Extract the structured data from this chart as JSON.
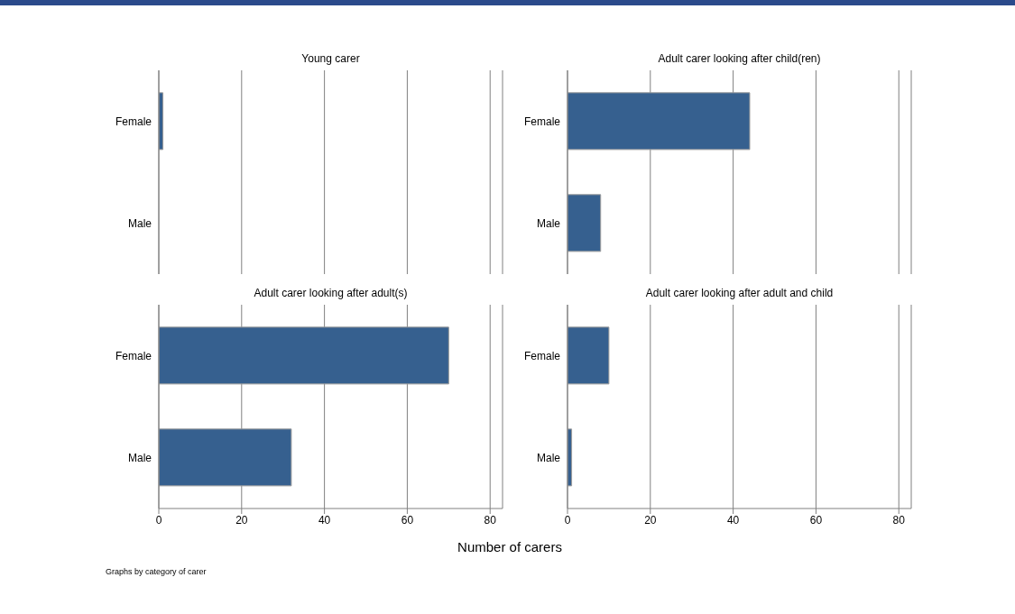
{
  "chart_data": [
    {
      "type": "bar",
      "orientation": "horizontal",
      "title": "Young carer",
      "categories": [
        "Female",
        "Male"
      ],
      "values": [
        1,
        null
      ],
      "color": "#36608f",
      "xlim": [
        0,
        83
      ],
      "xticks": [
        0,
        20,
        40,
        60,
        80
      ],
      "grid": "x",
      "tick_labels": "y"
    },
    {
      "type": "bar",
      "orientation": "horizontal",
      "title": "Adult carer looking after child(ren)",
      "categories": [
        "Female",
        "Male"
      ],
      "values": [
        44,
        8
      ],
      "color": "#36608f",
      "xlim": [
        0,
        83
      ],
      "xticks": [
        0,
        20,
        40,
        60,
        80
      ],
      "grid": "x",
      "tick_labels": "y"
    },
    {
      "type": "bar",
      "orientation": "horizontal",
      "title": "Adult carer looking after adult(s)",
      "categories": [
        "Female",
        "Male"
      ],
      "values": [
        70,
        32
      ],
      "color": "#36608f",
      "xlim": [
        0,
        83
      ],
      "xticks": [
        0,
        20,
        40,
        60,
        80
      ],
      "grid": "x",
      "xlabel": "Number of carers",
      "annotations": [
        "Graphs by category of carer"
      ]
    },
    {
      "type": "bar",
      "orientation": "horizontal",
      "title": "Adult carer looking after adult and child",
      "categories": [
        "Female",
        "Male"
      ],
      "values": [
        10,
        1
      ],
      "color": "#36608f",
      "xlim": [
        0,
        83
      ],
      "xticks": [
        0,
        20,
        40,
        60,
        80
      ],
      "grid": "x"
    }
  ]
}
